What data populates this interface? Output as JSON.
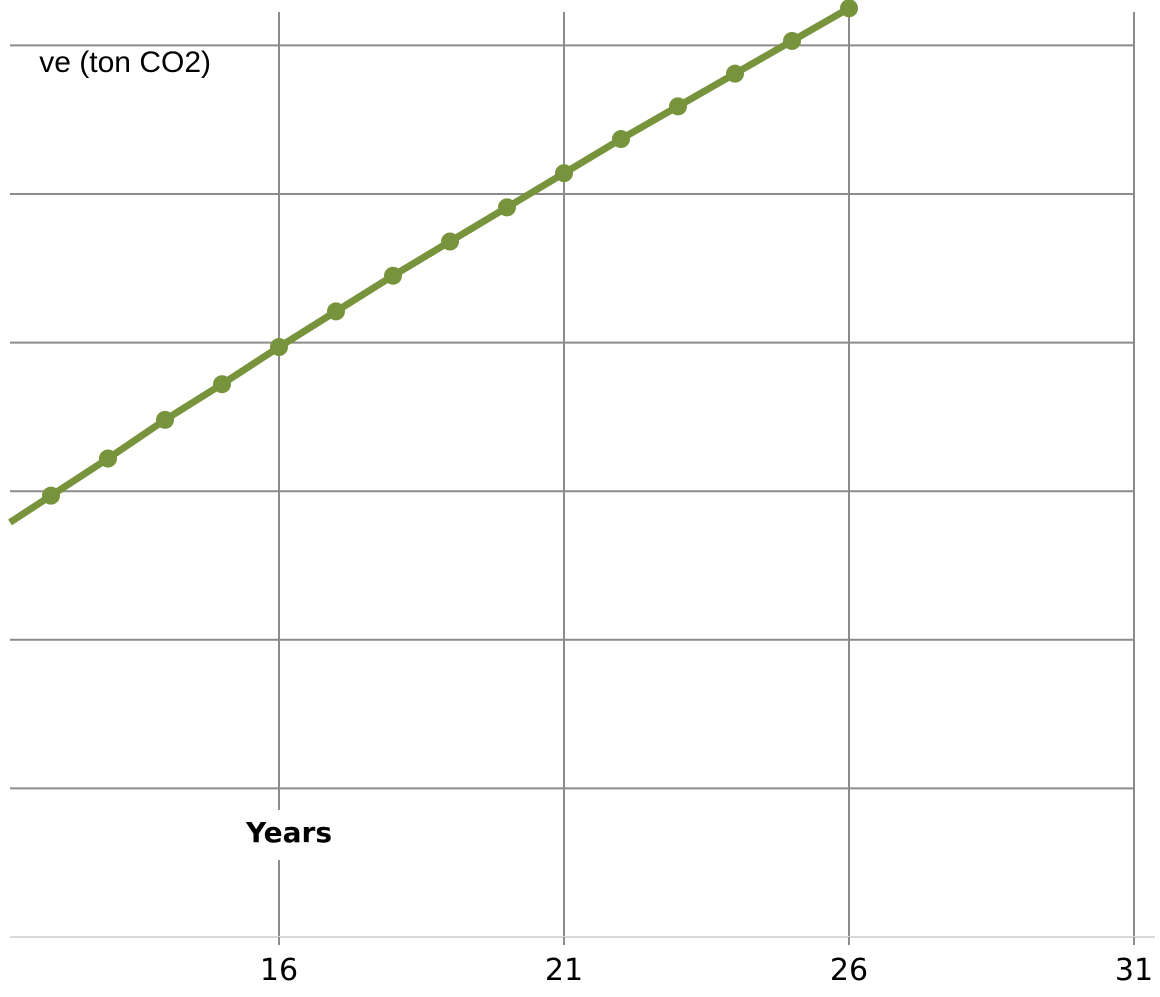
{
  "chart_data": {
    "type": "line",
    "title": "",
    "ylabel": "ve (ton CO2)",
    "xlabel": "Years",
    "x_ticks": [
      "16",
      "21",
      "26",
      "31"
    ],
    "xlim": [
      11.3,
      31
    ],
    "ylim": [
      0,
      6
    ],
    "grid": true,
    "series": [
      {
        "color": "#77933c",
        "x": [
          12,
          13,
          14,
          15,
          16,
          17,
          18,
          19,
          20,
          21,
          22,
          23,
          24,
          25,
          26
        ],
        "y": [
          2.97,
          3.22,
          3.48,
          3.72,
          3.97,
          4.21,
          4.45,
          4.68,
          4.91,
          5.14,
          5.37,
          5.59,
          5.81,
          6.03,
          6.25
        ]
      }
    ]
  }
}
